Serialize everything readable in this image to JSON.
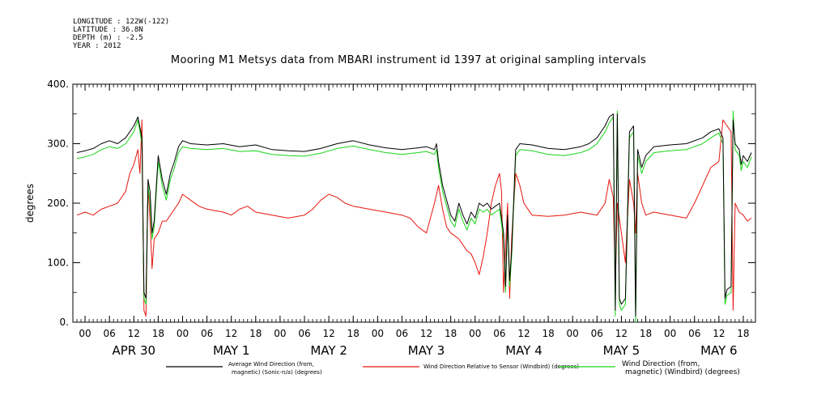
{
  "header": {
    "longitude": "LONGITUDE : 122W(-122)",
    "latitude": "LATITUDE : 36.8N",
    "depth": "DEPTH (m) : -2.5",
    "year": "YEAR : 2012",
    "title": "Mooring M1 Metsys data from MBARI instrument id 1397 at original sampling intervals"
  },
  "chart_data": {
    "type": "line",
    "title": "Mooring M1 Metsys data from MBARI instrument id 1397 at original sampling intervals",
    "ylabel": "degrees",
    "xlabel": "",
    "ylim": [
      0,
      400
    ],
    "yticks": [
      "0.",
      "100.",
      "200.",
      "300.",
      "400."
    ],
    "xlim_hours": [
      -3,
      165
    ],
    "hour_tick_labels": [
      "00",
      "06",
      "12",
      "18",
      "00",
      "06",
      "12",
      "18",
      "00",
      "06",
      "12",
      "18",
      "00",
      "06",
      "12",
      "18",
      "00",
      "06",
      "12",
      "18",
      "00",
      "06",
      "12",
      "18",
      "00",
      "06",
      "12",
      "18"
    ],
    "day_labels": [
      {
        "label": "APR 30",
        "hour": 12
      },
      {
        "label": "MAY   1",
        "hour": 36
      },
      {
        "label": "MAY   2",
        "hour": 60
      },
      {
        "label": "MAY   3",
        "hour": 84
      },
      {
        "label": "MAY   4",
        "hour": 108
      },
      {
        "label": "MAY   5",
        "hour": 132
      },
      {
        "label": "MAY   6",
        "hour": 156
      }
    ],
    "series": [
      {
        "name": "Average Wind Direction (from, magnetic) (Sonic-n/a) (degrees)",
        "color": "#000000",
        "points": [
          [
            -2,
            285
          ],
          [
            0,
            288
          ],
          [
            2,
            292
          ],
          [
            4,
            300
          ],
          [
            6,
            305
          ],
          [
            8,
            300
          ],
          [
            10,
            310
          ],
          [
            12,
            330
          ],
          [
            13,
            345
          ],
          [
            14,
            310
          ],
          [
            14.5,
            50
          ],
          [
            15,
            40
          ],
          [
            15.5,
            240
          ],
          [
            16,
            220
          ],
          [
            16.5,
            150
          ],
          [
            17,
            170
          ],
          [
            18,
            280
          ],
          [
            19,
            240
          ],
          [
            20,
            215
          ],
          [
            21,
            250
          ],
          [
            22,
            270
          ],
          [
            23,
            295
          ],
          [
            24,
            305
          ],
          [
            26,
            300
          ],
          [
            30,
            298
          ],
          [
            34,
            300
          ],
          [
            38,
            295
          ],
          [
            42,
            298
          ],
          [
            46,
            290
          ],
          [
            50,
            288
          ],
          [
            54,
            287
          ],
          [
            58,
            292
          ],
          [
            62,
            300
          ],
          [
            66,
            305
          ],
          [
            70,
            298
          ],
          [
            74,
            293
          ],
          [
            78,
            290
          ],
          [
            82,
            293
          ],
          [
            84,
            295
          ],
          [
            86,
            290
          ],
          [
            86.5,
            300
          ],
          [
            87,
            270
          ],
          [
            88,
            230
          ],
          [
            89,
            205
          ],
          [
            90,
            180
          ],
          [
            91,
            170
          ],
          [
            92,
            200
          ],
          [
            93,
            180
          ],
          [
            94,
            165
          ],
          [
            95,
            185
          ],
          [
            96,
            175
          ],
          [
            97,
            200
          ],
          [
            98,
            195
          ],
          [
            99,
            200
          ],
          [
            100,
            190
          ],
          [
            101,
            195
          ],
          [
            102,
            200
          ],
          [
            103,
            150
          ],
          [
            103.5,
            60
          ],
          [
            104,
            180
          ],
          [
            104.5,
            70
          ],
          [
            105,
            120
          ],
          [
            106,
            290
          ],
          [
            107,
            300
          ],
          [
            110,
            298
          ],
          [
            114,
            292
          ],
          [
            118,
            290
          ],
          [
            122,
            295
          ],
          [
            124,
            300
          ],
          [
            126,
            310
          ],
          [
            128,
            330
          ],
          [
            129,
            345
          ],
          [
            130,
            350
          ],
          [
            130.5,
            20
          ],
          [
            131,
            350
          ],
          [
            131.5,
            40
          ],
          [
            132,
            30
          ],
          [
            133,
            40
          ],
          [
            134,
            320
          ],
          [
            135,
            330
          ],
          [
            135.5,
            10
          ],
          [
            136,
            290
          ],
          [
            137,
            260
          ],
          [
            138,
            280
          ],
          [
            140,
            295
          ],
          [
            144,
            298
          ],
          [
            148,
            300
          ],
          [
            152,
            310
          ],
          [
            154,
            320
          ],
          [
            156,
            325
          ],
          [
            157,
            310
          ],
          [
            157.5,
            40
          ],
          [
            158,
            55
          ],
          [
            159,
            60
          ],
          [
            159.5,
            340
          ],
          [
            160,
            300
          ],
          [
            161,
            290
          ],
          [
            161.5,
            265
          ],
          [
            162,
            280
          ],
          [
            163,
            270
          ],
          [
            164,
            285
          ]
        ]
      },
      {
        "name": "Wind Direction Relative to Sensor (Windbird) (degrees)",
        "color": "#e8160e",
        "points": [
          [
            -2,
            180
          ],
          [
            0,
            185
          ],
          [
            2,
            180
          ],
          [
            4,
            190
          ],
          [
            6,
            195
          ],
          [
            8,
            200
          ],
          [
            10,
            220
          ],
          [
            11,
            250
          ],
          [
            12,
            265
          ],
          [
            13,
            290
          ],
          [
            13.5,
            250
          ],
          [
            14,
            340
          ],
          [
            14.5,
            20
          ],
          [
            15,
            10
          ],
          [
            15.5,
            230
          ],
          [
            16,
            170
          ],
          [
            16.5,
            90
          ],
          [
            17,
            140
          ],
          [
            18,
            150
          ],
          [
            19,
            170
          ],
          [
            20,
            170
          ],
          [
            21,
            180
          ],
          [
            22,
            190
          ],
          [
            23,
            200
          ],
          [
            24,
            215
          ],
          [
            26,
            205
          ],
          [
            28,
            195
          ],
          [
            30,
            190
          ],
          [
            34,
            185
          ],
          [
            36,
            180
          ],
          [
            38,
            190
          ],
          [
            40,
            195
          ],
          [
            42,
            185
          ],
          [
            46,
            180
          ],
          [
            50,
            175
          ],
          [
            54,
            180
          ],
          [
            56,
            190
          ],
          [
            58,
            205
          ],
          [
            60,
            215
          ],
          [
            62,
            210
          ],
          [
            64,
            200
          ],
          [
            66,
            195
          ],
          [
            70,
            190
          ],
          [
            74,
            185
          ],
          [
            78,
            180
          ],
          [
            80,
            175
          ],
          [
            82,
            160
          ],
          [
            84,
            150
          ],
          [
            86,
            200
          ],
          [
            86.5,
            215
          ],
          [
            87,
            230
          ],
          [
            88,
            190
          ],
          [
            89,
            160
          ],
          [
            90,
            150
          ],
          [
            92,
            140
          ],
          [
            94,
            120
          ],
          [
            95,
            115
          ],
          [
            96,
            100
          ],
          [
            97,
            80
          ],
          [
            98,
            110
          ],
          [
            99,
            150
          ],
          [
            100,
            200
          ],
          [
            101,
            230
          ],
          [
            102,
            250
          ],
          [
            102.5,
            220
          ],
          [
            103,
            50
          ],
          [
            104,
            200
          ],
          [
            104.5,
            40
          ],
          [
            105,
            140
          ],
          [
            106,
            250
          ],
          [
            107,
            230
          ],
          [
            108,
            200
          ],
          [
            110,
            180
          ],
          [
            114,
            178
          ],
          [
            118,
            180
          ],
          [
            122,
            185
          ],
          [
            126,
            180
          ],
          [
            128,
            200
          ],
          [
            129,
            240
          ],
          [
            130,
            210
          ],
          [
            130.5,
            60
          ],
          [
            131,
            200
          ],
          [
            132,
            150
          ],
          [
            133,
            100
          ],
          [
            134,
            240
          ],
          [
            135,
            200
          ],
          [
            135.5,
            150
          ],
          [
            136,
            250
          ],
          [
            137,
            200
          ],
          [
            138,
            180
          ],
          [
            140,
            185
          ],
          [
            144,
            180
          ],
          [
            148,
            175
          ],
          [
            150,
            200
          ],
          [
            152,
            230
          ],
          [
            154,
            260
          ],
          [
            155,
            265
          ],
          [
            156,
            270
          ],
          [
            157,
            340
          ],
          [
            158,
            330
          ],
          [
            159,
            320
          ],
          [
            159.5,
            20
          ],
          [
            160,
            200
          ],
          [
            161,
            185
          ],
          [
            162,
            180
          ],
          [
            163,
            170
          ],
          [
            164,
            175
          ]
        ]
      },
      {
        "name": "Wind Direction (from, magnetic) (Windbird) (degrees)",
        "color": "#16d616",
        "points": [
          [
            -2,
            275
          ],
          [
            0,
            278
          ],
          [
            2,
            282
          ],
          [
            4,
            290
          ],
          [
            6,
            295
          ],
          [
            8,
            292
          ],
          [
            10,
            300
          ],
          [
            12,
            320
          ],
          [
            13,
            340
          ],
          [
            14,
            300
          ],
          [
            14.5,
            40
          ],
          [
            15,
            30
          ],
          [
            15.5,
            230
          ],
          [
            16,
            200
          ],
          [
            16.5,
            140
          ],
          [
            17,
            160
          ],
          [
            18,
            270
          ],
          [
            19,
            230
          ],
          [
            20,
            205
          ],
          [
            21,
            240
          ],
          [
            22,
            260
          ],
          [
            23,
            285
          ],
          [
            24,
            295
          ],
          [
            26,
            292
          ],
          [
            30,
            290
          ],
          [
            34,
            292
          ],
          [
            38,
            287
          ],
          [
            42,
            288
          ],
          [
            46,
            282
          ],
          [
            50,
            280
          ],
          [
            54,
            279
          ],
          [
            58,
            284
          ],
          [
            62,
            292
          ],
          [
            66,
            296
          ],
          [
            70,
            290
          ],
          [
            74,
            285
          ],
          [
            78,
            282
          ],
          [
            82,
            285
          ],
          [
            84,
            287
          ],
          [
            86,
            282
          ],
          [
            86.5,
            290
          ],
          [
            87,
            260
          ],
          [
            88,
            220
          ],
          [
            89,
            195
          ],
          [
            90,
            170
          ],
          [
            91,
            160
          ],
          [
            92,
            190
          ],
          [
            93,
            170
          ],
          [
            94,
            155
          ],
          [
            95,
            175
          ],
          [
            96,
            165
          ],
          [
            97,
            190
          ],
          [
            98,
            185
          ],
          [
            99,
            190
          ],
          [
            100,
            180
          ],
          [
            101,
            185
          ],
          [
            102,
            190
          ],
          [
            103,
            140
          ],
          [
            103.5,
            50
          ],
          [
            104,
            170
          ],
          [
            104.5,
            60
          ],
          [
            105,
            110
          ],
          [
            106,
            280
          ],
          [
            107,
            290
          ],
          [
            110,
            288
          ],
          [
            114,
            282
          ],
          [
            118,
            280
          ],
          [
            122,
            285
          ],
          [
            124,
            290
          ],
          [
            126,
            300
          ],
          [
            128,
            320
          ],
          [
            129,
            335
          ],
          [
            130,
            345
          ],
          [
            130.5,
            10
          ],
          [
            131,
            355
          ],
          [
            131.5,
            30
          ],
          [
            132,
            20
          ],
          [
            133,
            30
          ],
          [
            134,
            310
          ],
          [
            135,
            320
          ],
          [
            135.5,
            0
          ],
          [
            136,
            280
          ],
          [
            137,
            250
          ],
          [
            138,
            270
          ],
          [
            140,
            285
          ],
          [
            144,
            288
          ],
          [
            148,
            290
          ],
          [
            152,
            300
          ],
          [
            154,
            310
          ],
          [
            156,
            318
          ],
          [
            157,
            300
          ],
          [
            157.5,
            30
          ],
          [
            158,
            45
          ],
          [
            159,
            50
          ],
          [
            159.5,
            355
          ],
          [
            160,
            290
          ],
          [
            161,
            280
          ],
          [
            161.5,
            255
          ],
          [
            162,
            270
          ],
          [
            163,
            260
          ],
          [
            164,
            278
          ]
        ]
      }
    ],
    "legend_position": "bottom",
    "grid": false
  }
}
